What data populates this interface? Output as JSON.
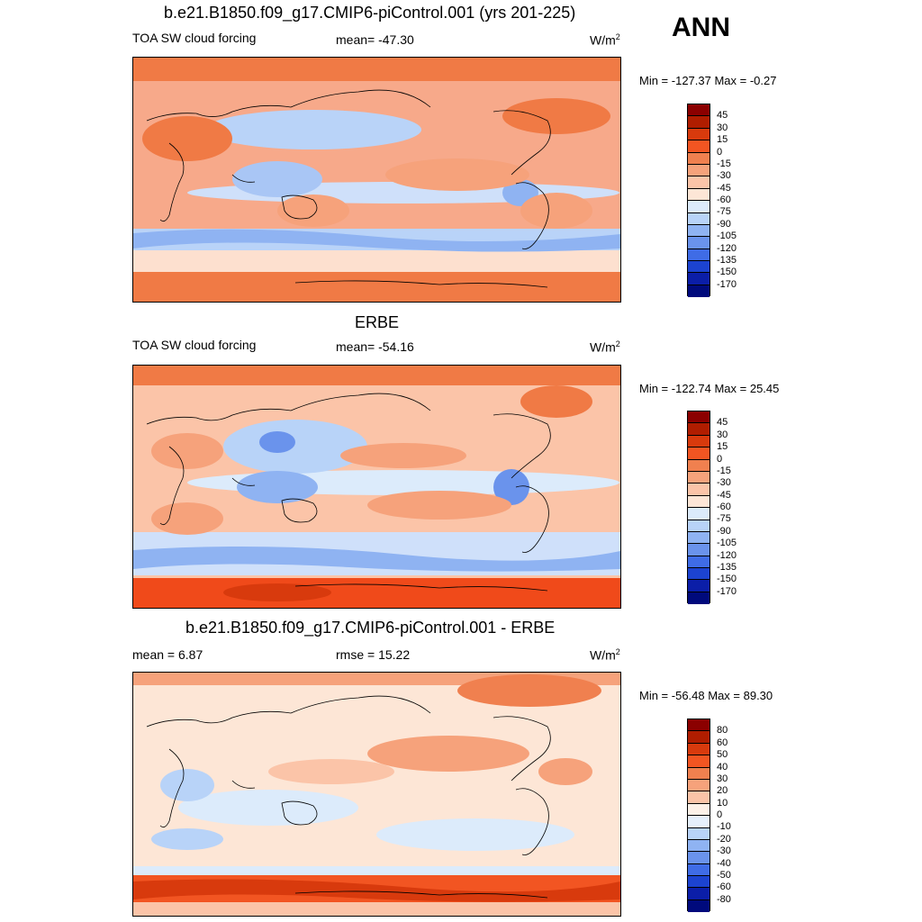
{
  "header": {
    "season": "ANN"
  },
  "panels": [
    {
      "title": "b.e21.B1850.f09_g17.CMIP6-piControl.001 (yrs 201-225)",
      "left_label": "TOA SW cloud forcing",
      "center_label": "mean= -47.30",
      "units": "W/m",
      "units_sup": "2",
      "minmax": "Min = -127.37 Max =  -0.27",
      "colorbar_ticks": [
        "45",
        "30",
        "15",
        "0",
        "-15",
        "-30",
        "-45",
        "-60",
        "-75",
        "-90",
        "-105",
        "-120",
        "-135",
        "-150",
        "-170"
      ]
    },
    {
      "title": "ERBE",
      "left_label": "TOA SW cloud forcing",
      "center_label": "mean= -54.16",
      "units": "W/m",
      "units_sup": "2",
      "minmax": "Min = -122.74 Max =  25.45",
      "colorbar_ticks": [
        "45",
        "30",
        "15",
        "0",
        "-15",
        "-30",
        "-45",
        "-60",
        "-75",
        "-90",
        "-105",
        "-120",
        "-135",
        "-150",
        "-170"
      ]
    },
    {
      "title": "b.e21.B1850.f09_g17.CMIP6-piControl.001 - ERBE",
      "left_label": "mean =   6.87",
      "center_label": "rmse =  15.22",
      "units": "W/m",
      "units_sup": "2",
      "minmax": "Min = -56.48 Max =  89.30",
      "colorbar_ticks": [
        "80",
        "60",
        "50",
        "40",
        "30",
        "20",
        "10",
        "0",
        "-10",
        "-20",
        "-30",
        "-40",
        "-50",
        "-60",
        "-80"
      ]
    }
  ],
  "colors": {
    "colorbar": [
      "#8b0000",
      "#b01d00",
      "#d83a0d",
      "#f25522",
      "#f0804f",
      "#f6a27b",
      "#fbc4a8",
      "#fde6d6",
      "#dcebfb",
      "#b8d3f8",
      "#8fb3f2",
      "#6a93ec",
      "#3f6ce6",
      "#1c43d0",
      "#0b1ea8",
      "#000a7c"
    ]
  }
}
